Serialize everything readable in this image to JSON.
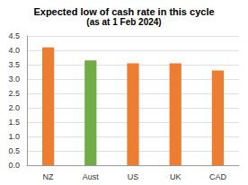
{
  "chart_data": {
    "type": "bar",
    "title": "Expected low of cash rate in this cycle",
    "subtitle": "(as at 1 Feb 2024)",
    "categories": [
      "NZ",
      "Aust",
      "US",
      "UK",
      "CAD"
    ],
    "values": [
      4.1,
      3.65,
      3.55,
      3.55,
      3.3
    ],
    "colors": [
      "#ed7d31",
      "#70ad47",
      "#ed7d31",
      "#ed7d31",
      "#ed7d31"
    ],
    "ylim": [
      0,
      4.5
    ],
    "yticks": [
      {
        "value": 0,
        "label": "0.0"
      },
      {
        "value": 0.5,
        "label": "0.5"
      },
      {
        "value": 1,
        "label": "1.0"
      },
      {
        "value": 1.5,
        "label": "1.5"
      },
      {
        "value": 2,
        "label": "2.0"
      },
      {
        "value": 2.5,
        "label": "2.5"
      },
      {
        "value": 3,
        "label": "3.0"
      },
      {
        "value": 3.5,
        "label": "3.5"
      },
      {
        "value": 4,
        "label": "4.0"
      },
      {
        "value": 4.5,
        "label": "4.5"
      }
    ],
    "grid": true
  }
}
